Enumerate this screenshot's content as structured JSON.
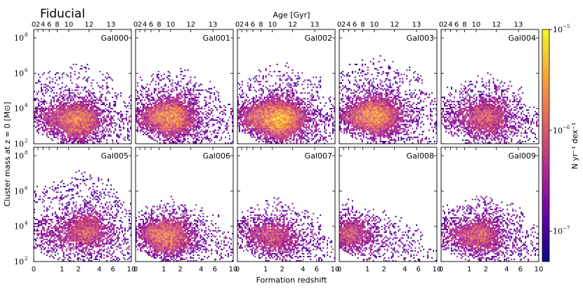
{
  "chart_data": {
    "type": "heatmap",
    "title": "Fiducial",
    "top_axis_label": "Age [Gyr]",
    "top_tick_labels": [
      "0",
      "2",
      "4",
      "6",
      "8",
      "10",
      "12",
      "13"
    ],
    "top_tick_values_gyr": [
      0,
      2,
      4,
      6,
      8,
      10,
      12,
      13
    ],
    "xlabel": "Formation redshift",
    "x_tick_labels": [
      "0",
      "1",
      "2",
      "4",
      "6",
      "10"
    ],
    "x_tick_values": [
      0,
      1,
      2,
      4,
      6,
      10
    ],
    "xlim": [
      0,
      10
    ],
    "ylabel": "Cluster mass at z = 0 [M⊙]",
    "y_tick_labels": [
      "10",
      "10",
      "10",
      "10"
    ],
    "y_tick_exponents": [
      "2",
      "4",
      "6",
      "8"
    ],
    "y_tick_values": [
      100,
      10000,
      1000000,
      100000000
    ],
    "ylim": [
      100,
      300000000
    ],
    "yscale": "log",
    "colorbar": {
      "label": "N yr⁻¹ dex⁻¹",
      "scale": "log",
      "range": [
        5e-08,
        1e-05
      ],
      "tick_labels": [
        "10",
        "10",
        "10"
      ],
      "tick_exponents": [
        "−5",
        "−6",
        "−7"
      ],
      "tick_values": [
        1e-05,
        1e-06,
        1e-07
      ],
      "colormap": "plasma",
      "colors": [
        "#0d0887",
        "#6a00a8",
        "#b12a90",
        "#e16462",
        "#fca636",
        "#f0f921"
      ]
    },
    "panels": [
      {
        "name": "Gal000",
        "peak_z": 2.0,
        "peak_logm": 3.3,
        "max_logm": 6.4,
        "density": 1.0
      },
      {
        "name": "Gal001",
        "peak_z": 1.5,
        "peak_logm": 3.5,
        "max_logm": 6.0,
        "density": 1.05
      },
      {
        "name": "Gal002",
        "peak_z": 1.9,
        "peak_logm": 3.4,
        "max_logm": 6.2,
        "density": 1.35
      },
      {
        "name": "Gal003",
        "peak_z": 1.6,
        "peak_logm": 3.6,
        "max_logm": 6.6,
        "density": 1.1
      },
      {
        "name": "Gal004",
        "peak_z": 2.2,
        "peak_logm": 3.5,
        "max_logm": 5.6,
        "density": 0.8
      },
      {
        "name": "Gal005",
        "peak_z": 2.6,
        "peak_logm": 3.8,
        "max_logm": 6.8,
        "density": 0.8
      },
      {
        "name": "Gal006",
        "peak_z": 1.3,
        "peak_logm": 3.4,
        "max_logm": 5.3,
        "density": 0.9
      },
      {
        "name": "Gal007",
        "peak_z": 1.6,
        "peak_logm": 3.4,
        "max_logm": 5.2,
        "density": 0.65
      },
      {
        "name": "Gal008",
        "peak_z": 0.3,
        "peak_logm": 3.5,
        "max_logm": 5.1,
        "density": 0.55
      },
      {
        "name": "Gal009",
        "peak_z": 1.7,
        "peak_logm": 3.5,
        "max_logm": 5.5,
        "density": 0.75
      }
    ]
  }
}
